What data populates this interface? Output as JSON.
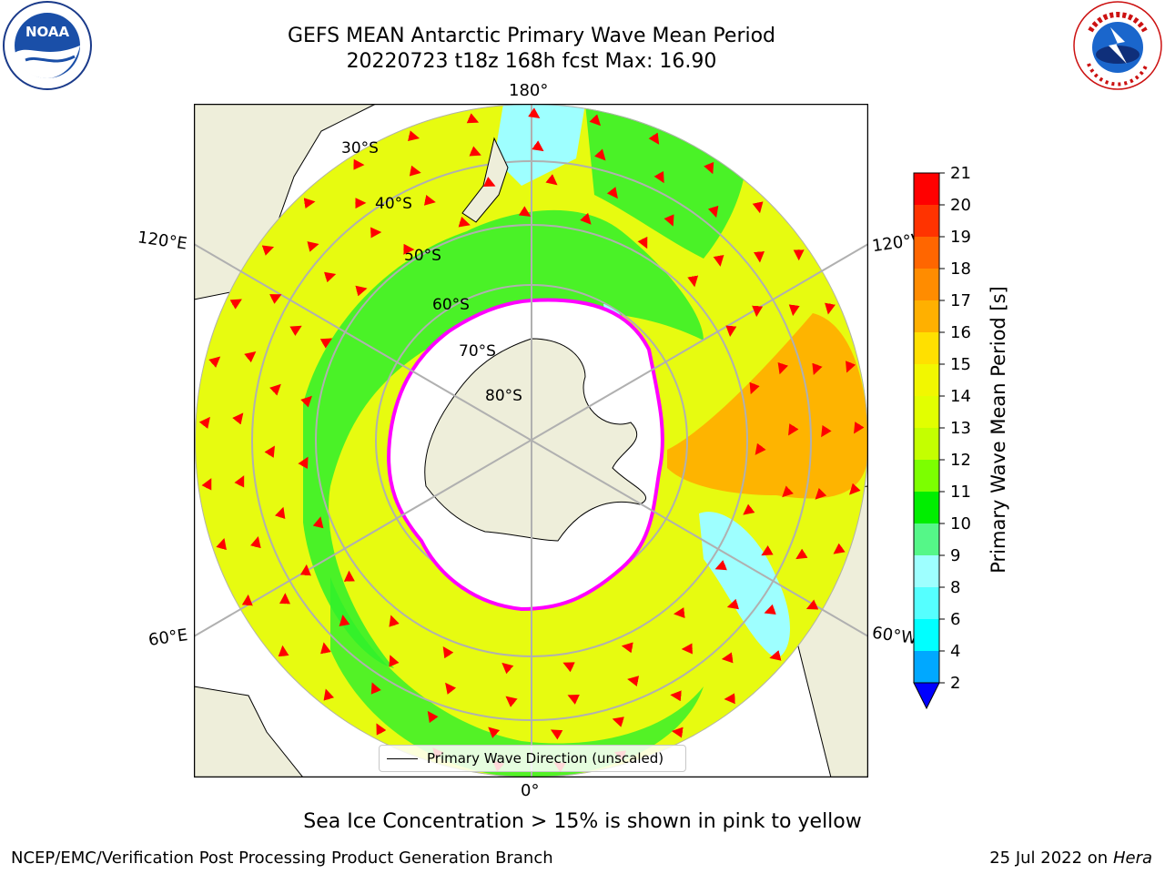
{
  "title_line1": "GEFS MEAN Antarctic Primary Wave Mean Period",
  "title_line2": "20220723 t18z 168h fcst   Max: 16.90",
  "longitude_labels": {
    "top": "180°",
    "bottom": "0°",
    "left_upper": "120°E",
    "left_lower": "60°E",
    "right_upper": "120°W",
    "right_lower": "60°W"
  },
  "latitude_labels": [
    "30°S",
    "40°S",
    "50°S",
    "60°S",
    "70°S",
    "80°S"
  ],
  "legend_label": "Primary Wave Direction (unscaled)",
  "colorbar": {
    "label": "Primary Wave Mean Period [s]",
    "ticks": [
      "21",
      "20",
      "19",
      "18",
      "17",
      "16",
      "15",
      "14",
      "13",
      "12",
      "11",
      "10",
      "9",
      "8",
      "6",
      "4",
      "2"
    ],
    "colors": [
      "#ff0000",
      "#ff3300",
      "#ff6600",
      "#ff8c00",
      "#ffb000",
      "#ffe000",
      "#f2f700",
      "#e2ff00",
      "#c4ff00",
      "#7cff00",
      "#00ee00",
      "#55f788",
      "#9effff",
      "#55ffff",
      "#00ffff",
      "#00a8ff"
    ],
    "under_color": "#0000ff"
  },
  "colors": {
    "ocean_yellow": "#e7fb10",
    "green": "#2ef02c",
    "land": "#eeeeda",
    "ice_edge": "#ff00ff",
    "arrow": "#ff0000"
  },
  "footer_note": "Sea Ice Concentration > 15% is shown in pink to yellow",
  "footer_left": "NCEP/EMC/Verification Post Processing Product Generation Branch",
  "footer_right_date": "25 Jul 2022 on ",
  "footer_right_host": "Hera",
  "logos": {
    "noaa": "NOAA",
    "nws_text": "NATIONAL WEATHER SERVICE"
  }
}
